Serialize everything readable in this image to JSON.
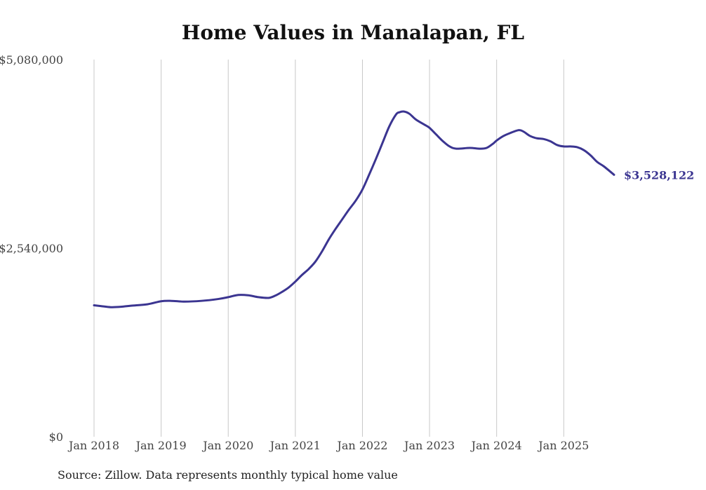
{
  "chart_data": {
    "type": "line",
    "title": "Home Values in Manalapan, FL",
    "xlabel": "",
    "ylabel": "",
    "source": "Source: Zillow. Data represents monthly typical home value",
    "line_color": "#3b3591",
    "grid_color": "#c8c8c8",
    "grid": "vertical",
    "ylim": [
      0,
      5080000
    ],
    "y_ticks": [
      {
        "value": 0,
        "label": "$0"
      },
      {
        "value": 2540000,
        "label": "$2,540,000"
      },
      {
        "value": 5080000,
        "label": "$5,080,000"
      }
    ],
    "x_ticks": [
      {
        "value": 2018.0,
        "label": "Jan 2018"
      },
      {
        "value": 2019.0,
        "label": "Jan 2019"
      },
      {
        "value": 2020.0,
        "label": "Jan 2020"
      },
      {
        "value": 2021.0,
        "label": "Jan 2021"
      },
      {
        "value": 2022.0,
        "label": "Jan 2022"
      },
      {
        "value": 2023.0,
        "label": "Jan 2023"
      },
      {
        "value": 2024.0,
        "label": "Jan 2024"
      },
      {
        "value": 2025.0,
        "label": "Jan 2025"
      }
    ],
    "end_label": "$3,528,122",
    "series": [
      {
        "name": "Typical home value",
        "x": [
          2018.0,
          2018.1,
          2018.25,
          2018.4,
          2018.55,
          2018.8,
          2019.0,
          2019.15,
          2019.35,
          2019.6,
          2019.85,
          2020.0,
          2020.15,
          2020.3,
          2020.45,
          2020.6,
          2020.7,
          2020.8,
          2020.9,
          2021.0,
          2021.1,
          2021.2,
          2021.3,
          2021.4,
          2021.5,
          2021.6,
          2021.7,
          2021.8,
          2021.9,
          2022.0,
          2022.1,
          2022.2,
          2022.3,
          2022.4,
          2022.5,
          2022.55,
          2022.62,
          2022.7,
          2022.8,
          2022.95,
          2023.0,
          2023.1,
          2023.2,
          2023.3,
          2023.4,
          2023.6,
          2023.75,
          2023.85,
          2023.95,
          2024.0,
          2024.1,
          2024.2,
          2024.33,
          2024.4,
          2024.5,
          2024.6,
          2024.7,
          2024.8,
          2024.9,
          2025.0,
          2025.1,
          2025.2,
          2025.3,
          2025.4,
          2025.5,
          2025.6,
          2025.75
        ],
        "values": [
          1770000,
          1760000,
          1745000,
          1750000,
          1765000,
          1785000,
          1825000,
          1830000,
          1820000,
          1830000,
          1855000,
          1880000,
          1910000,
          1905000,
          1880000,
          1870000,
          1900000,
          1950000,
          2010000,
          2090000,
          2180000,
          2260000,
          2360000,
          2500000,
          2660000,
          2800000,
          2930000,
          3060000,
          3180000,
          3330000,
          3530000,
          3740000,
          3960000,
          4180000,
          4340000,
          4370000,
          4380000,
          4350000,
          4270000,
          4190000,
          4160000,
          4070000,
          3980000,
          3910000,
          3880000,
          3890000,
          3880000,
          3890000,
          3950000,
          3990000,
          4050000,
          4090000,
          4130000,
          4110000,
          4050000,
          4020000,
          4010000,
          3980000,
          3930000,
          3910000,
          3910000,
          3900000,
          3860000,
          3790000,
          3700000,
          3640000,
          3528122
        ]
      }
    ]
  }
}
